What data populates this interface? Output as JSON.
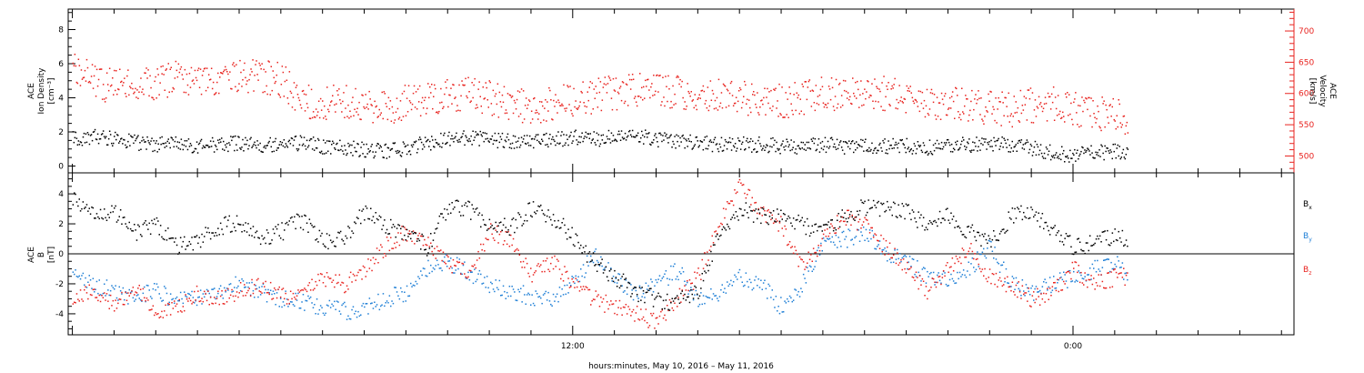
{
  "figure": {
    "x_axis_title": "hours:minutes, May 10, 2016 – May 11, 2016",
    "x_tick_labels": [
      {
        "label": "12:00",
        "hour": 12
      },
      {
        "label": "0:00",
        "hour": 24
      }
    ]
  },
  "chart_data": [
    {
      "type": "scatter",
      "panel": "top",
      "xlabel": "hours:minutes, May 10, 2016 – May 11, 2016",
      "x_units": "hours from 00:00 May 10, 2016",
      "xlim": [
        -0.1,
        29.3
      ],
      "grid": false,
      "left_axis": {
        "label_lines": [
          "ACE",
          "Ion Density",
          "[cm⁻³]"
        ],
        "ylim": [
          -0.4,
          9.2
        ],
        "ticks": [
          0,
          2,
          4,
          6,
          8
        ],
        "color": "#000000"
      },
      "right_axis": {
        "label_lines": [
          "ACE",
          "Velocity",
          "[km/s]"
        ],
        "ylim": [
          473,
          735
        ],
        "ticks": [
          500,
          550,
          600,
          650,
          700
        ],
        "color": "#e8231f"
      },
      "series": [
        {
          "name": "Ion Density",
          "axis": "left",
          "color": "#000000",
          "x": [
            0,
            0.5,
            1,
            1.5,
            2,
            2.5,
            3,
            3.5,
            4,
            4.5,
            5,
            5.5,
            6,
            6.5,
            7,
            7.5,
            8,
            8.5,
            9,
            9.5,
            10,
            10.5,
            11,
            11.5,
            12,
            12.5,
            13,
            13.5,
            14,
            14.5,
            15,
            15.5,
            16,
            16.5,
            17,
            17.5,
            18,
            18.5,
            19,
            19.5,
            20,
            20.5,
            21,
            21.5,
            22,
            22.5,
            23,
            23.5,
            24,
            24.5,
            25,
            25.3
          ],
          "y": [
            1.6,
            1.8,
            1.6,
            1.4,
            1.3,
            1.3,
            1.2,
            1.3,
            1.4,
            1.3,
            1.3,
            1.4,
            1.2,
            1.1,
            1.0,
            0.9,
            1.1,
            1.4,
            1.6,
            1.7,
            1.6,
            1.5,
            1.5,
            1.6,
            1.7,
            1.6,
            1.7,
            1.8,
            1.6,
            1.5,
            1.4,
            1.3,
            1.3,
            1.3,
            1.2,
            1.2,
            1.3,
            1.2,
            1.2,
            1.2,
            1.2,
            1.1,
            1.2,
            1.3,
            1.3,
            1.3,
            1.1,
            0.8,
            0.7,
            0.8,
            0.9,
            0.9
          ]
        },
        {
          "name": "Velocity",
          "axis": "right",
          "color": "#e8231f",
          "x": [
            0,
            0.5,
            1,
            1.5,
            2,
            2.5,
            3,
            3.5,
            4,
            4.5,
            5,
            5.5,
            6,
            6.5,
            7,
            7.5,
            8,
            8.5,
            9,
            9.5,
            10,
            10.5,
            11,
            11.5,
            12,
            12.5,
            13,
            13.5,
            14,
            14.5,
            15,
            15.5,
            16,
            16.5,
            17,
            17.5,
            18,
            18.5,
            19,
            19.5,
            20,
            20.5,
            21,
            21.5,
            22,
            22.5,
            23,
            23.5,
            24,
            24.5,
            25,
            25.3
          ],
          "y": [
            650,
            620,
            612,
            614,
            618,
            625,
            628,
            622,
            630,
            628,
            622,
            590,
            585,
            590,
            582,
            578,
            588,
            595,
            598,
            600,
            594,
            586,
            580,
            585,
            593,
            597,
            602,
            605,
            608,
            603,
            598,
            596,
            594,
            590,
            588,
            594,
            600,
            598,
            603,
            600,
            595,
            588,
            583,
            582,
            578,
            575,
            582,
            585,
            575,
            570,
            565,
            560
          ]
        }
      ]
    },
    {
      "type": "scatter",
      "panel": "bottom",
      "xlabel": "hours:minutes, May 10, 2016 – May 11, 2016",
      "x_units": "hours from 00:00 May 10, 2016",
      "xlim": [
        -0.1,
        29.3
      ],
      "grid": false,
      "left_axis": {
        "label_lines": [
          "ACE",
          "B",
          "[nT]"
        ],
        "ylim": [
          -5.4,
          5.4
        ],
        "ticks": [
          -4,
          -2,
          0,
          2,
          4
        ],
        "color": "#000000"
      },
      "zero_line": true,
      "legend_position": "right",
      "series": [
        {
          "name": "Bx",
          "legend_main": "B",
          "legend_sub": "x",
          "color": "#000000",
          "x": [
            0,
            0.5,
            1,
            1.5,
            2,
            2.5,
            3,
            3.5,
            4,
            4.5,
            5,
            5.5,
            6,
            6.5,
            7,
            7.5,
            8,
            8.5,
            9,
            9.5,
            10,
            10.5,
            11,
            11.5,
            12,
            12.5,
            13,
            13.5,
            14,
            14.5,
            15,
            15.5,
            16,
            16.5,
            17,
            17.5,
            18,
            18.5,
            19,
            19.5,
            20,
            20.5,
            21,
            21.5,
            22,
            22.5,
            23,
            23.5,
            24,
            24.5,
            25,
            25.3
          ],
          "y": [
            3.8,
            2.5,
            2.8,
            1.5,
            2.0,
            0.5,
            1.0,
            1.8,
            2.2,
            1.0,
            1.5,
            2.3,
            0.8,
            1.2,
            2.8,
            2.0,
            1.5,
            0.5,
            3.2,
            3.0,
            2.0,
            1.8,
            3.0,
            2.5,
            1.2,
            -0.5,
            -1.5,
            -2.5,
            -3.0,
            -3.2,
            -2.5,
            1.5,
            3.0,
            2.5,
            2.8,
            2.0,
            1.5,
            2.5,
            3.2,
            3.0,
            2.8,
            2.0,
            2.5,
            1.5,
            0.8,
            2.5,
            2.8,
            1.5,
            0.5,
            0.8,
            1.2,
            1.0
          ]
        },
        {
          "name": "By",
          "legend_main": "B",
          "legend_sub": "y",
          "color": "#1f7fd6",
          "x": [
            0,
            0.5,
            1,
            1.5,
            2,
            2.5,
            3,
            3.5,
            4,
            4.5,
            5,
            5.5,
            6,
            6.5,
            7,
            7.5,
            8,
            8.5,
            9,
            9.5,
            10,
            10.5,
            11,
            11.5,
            12,
            12.5,
            13,
            13.5,
            14,
            14.5,
            15,
            15.5,
            16,
            16.5,
            17,
            17.5,
            18,
            18.5,
            19,
            19.5,
            20,
            20.5,
            21,
            21.5,
            22,
            22.5,
            23,
            23.5,
            24,
            24.5,
            25,
            25.3
          ],
          "y": [
            -1.5,
            -2.0,
            -2.5,
            -2.8,
            -2.5,
            -3.0,
            -2.8,
            -2.5,
            -2.0,
            -2.5,
            -3.0,
            -3.2,
            -3.5,
            -3.8,
            -3.6,
            -3.0,
            -2.5,
            -1.0,
            -0.5,
            -1.2,
            -2.0,
            -2.5,
            -2.8,
            -3.0,
            -2.0,
            0.0,
            -1.5,
            -2.8,
            -2.0,
            -1.0,
            -3.0,
            -2.5,
            -1.5,
            -2.0,
            -3.5,
            -2.0,
            0.5,
            1.0,
            1.5,
            0.0,
            -0.5,
            -1.5,
            -1.8,
            -1.0,
            0.5,
            -2.0,
            -2.5,
            -2.0,
            -1.5,
            -1.0,
            -0.5,
            -1.5
          ]
        },
        {
          "name": "Bz",
          "legend_main": "B",
          "legend_sub": "z",
          "color": "#e8231f",
          "x": [
            0,
            0.5,
            1,
            1.5,
            2,
            2.5,
            3,
            3.5,
            4,
            4.5,
            5,
            5.5,
            6,
            6.5,
            7,
            7.5,
            8,
            8.5,
            9,
            9.5,
            10,
            10.5,
            11,
            11.5,
            12,
            12.5,
            13,
            13.5,
            14,
            14.5,
            15,
            15.5,
            16,
            16.5,
            17,
            17.5,
            18,
            18.5,
            19,
            19.5,
            20,
            20.5,
            21,
            21.5,
            22,
            22.5,
            23,
            23.5,
            24,
            24.5,
            25,
            25.3
          ],
          "y": [
            -3.0,
            -2.5,
            -3.5,
            -2.0,
            -4.0,
            -3.5,
            -2.5,
            -3.0,
            -2.5,
            -2.0,
            -2.8,
            -2.5,
            -1.5,
            -2.0,
            -1.0,
            0.5,
            1.5,
            0.8,
            -0.5,
            -1.5,
            1.5,
            1.0,
            -1.5,
            -0.5,
            -2.0,
            -3.0,
            -3.5,
            -4.0,
            -4.5,
            -3.0,
            -1.5,
            2.0,
            4.5,
            3.0,
            2.0,
            -1.0,
            1.0,
            2.5,
            2.0,
            0.5,
            -1.0,
            -2.5,
            -1.0,
            0.5,
            -1.5,
            -2.0,
            -3.0,
            -2.5,
            -1.0,
            -2.0,
            -1.5,
            -1.5
          ]
        }
      ]
    }
  ]
}
